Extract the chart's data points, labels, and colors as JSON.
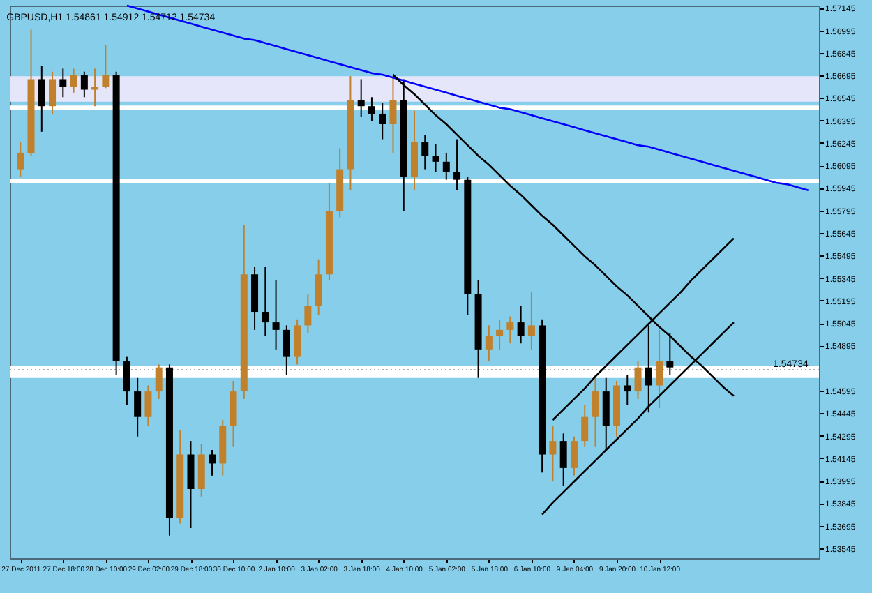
{
  "chart_data": {
    "type": "candlestick",
    "title": "GBPUSD,H1  1.54861 1.54912 1.54712 1.54734",
    "categories": [
      "27 Dec 2011",
      null,
      null,
      null,
      "27 Dec 18:00",
      null,
      null,
      null,
      "28 Dec 10:00",
      null,
      null,
      null,
      "29 Dec 02:00",
      null,
      null,
      null,
      "29 Dec 18:00",
      null,
      null,
      null,
      "30 Dec 10:00",
      null,
      null,
      null,
      "2 Jan 10:00",
      null,
      null,
      null,
      "3 Jan 02:00",
      null,
      null,
      null,
      "3 Jan 18:00",
      null,
      null,
      null,
      "4 Jan 10:00",
      null,
      null,
      null,
      "5 Jan 02:00",
      null,
      null,
      null,
      "5 Jan 18:00",
      null,
      null,
      null,
      "6 Jan 10:00",
      null,
      null,
      null,
      "9 Jan 04:00",
      null,
      null,
      null,
      "9 Jan 20:00",
      null,
      null,
      null,
      "10 Jan 12:00",
      null,
      null,
      null,
      null,
      null,
      null,
      null,
      null,
      null,
      null,
      null,
      null,
      null,
      null
    ],
    "ohlc": [
      [
        1.5607,
        1.5625,
        1.5602,
        1.5618
      ],
      [
        1.5618,
        1.57,
        1.5616,
        1.5667
      ],
      [
        1.5667,
        1.5676,
        1.5632,
        1.5649
      ],
      [
        1.5649,
        1.5672,
        1.5644,
        1.5667
      ],
      [
        1.5667,
        1.5674,
        1.5655,
        1.5662
      ],
      [
        1.5662,
        1.5674,
        1.5658,
        1.567
      ],
      [
        1.567,
        1.5672,
        1.5655,
        1.566
      ],
      [
        1.566,
        1.5674,
        1.5649,
        1.5662
      ],
      [
        1.5662,
        1.569,
        1.5661,
        1.567
      ],
      [
        1.567,
        1.5672,
        1.547,
        1.5479
      ],
      [
        1.5479,
        1.5482,
        1.545,
        1.5459
      ],
      [
        1.5459,
        1.5468,
        1.5429,
        1.5442
      ],
      [
        1.5442,
        1.5463,
        1.5436,
        1.5459
      ],
      [
        1.5459,
        1.5477,
        1.5454,
        1.5475
      ],
      [
        1.5475,
        1.5477,
        1.5363,
        1.5375
      ],
      [
        1.5375,
        1.5433,
        1.5371,
        1.5417
      ],
      [
        1.5417,
        1.5426,
        1.5368,
        1.5394
      ],
      [
        1.5394,
        1.5424,
        1.5389,
        1.5417
      ],
      [
        1.5417,
        1.542,
        1.5403,
        1.5411
      ],
      [
        1.5411,
        1.544,
        1.5403,
        1.5436
      ],
      [
        1.5436,
        1.5466,
        1.5422,
        1.5459
      ],
      [
        1.5459,
        1.557,
        1.5454,
        1.5537
      ],
      [
        1.5537,
        1.5542,
        1.55,
        1.5512
      ],
      [
        1.5512,
        1.5542,
        1.5496,
        1.5505
      ],
      [
        1.5505,
        1.5533,
        1.5487,
        1.55
      ],
      [
        1.55,
        1.5503,
        1.547,
        1.5482
      ],
      [
        1.5482,
        1.5507,
        1.5477,
        1.5503
      ],
      [
        1.5503,
        1.5524,
        1.5498,
        1.5516
      ],
      [
        1.5516,
        1.5547,
        1.551,
        1.5537
      ],
      [
        1.5537,
        1.5598,
        1.5533,
        1.5579
      ],
      [
        1.5579,
        1.5621,
        1.5575,
        1.5607
      ],
      [
        1.5607,
        1.5669,
        1.5593,
        1.5653
      ],
      [
        1.5653,
        1.5667,
        1.5642,
        1.5649
      ],
      [
        1.5649,
        1.5655,
        1.5639,
        1.5644
      ],
      [
        1.5644,
        1.5651,
        1.5627,
        1.5637
      ],
      [
        1.5637,
        1.5669,
        1.5618,
        1.5653
      ],
      [
        1.5653,
        1.5667,
        1.5579,
        1.5602
      ],
      [
        1.5602,
        1.5646,
        1.5593,
        1.5625
      ],
      [
        1.5625,
        1.563,
        1.5607,
        1.5616
      ],
      [
        1.5616,
        1.5624,
        1.5605,
        1.5612
      ],
      [
        1.5612,
        1.5618,
        1.56,
        1.5605
      ],
      [
        1.5605,
        1.5627,
        1.5593,
        1.56
      ],
      [
        1.56,
        1.5602,
        1.551,
        1.5524
      ],
      [
        1.5524,
        1.5533,
        1.5468,
        1.5487
      ],
      [
        1.5487,
        1.5503,
        1.5479,
        1.5496
      ],
      [
        1.5496,
        1.5507,
        1.5487,
        1.55
      ],
      [
        1.55,
        1.5509,
        1.5491,
        1.5505
      ],
      [
        1.5505,
        1.5516,
        1.5491,
        1.5496
      ],
      [
        1.5496,
        1.5525,
        1.5487,
        1.5503
      ],
      [
        1.5503,
        1.5507,
        1.5405,
        1.5417
      ],
      [
        1.5417,
        1.5436,
        1.5399,
        1.5426
      ],
      [
        1.5426,
        1.5431,
        1.5396,
        1.5408
      ],
      [
        1.5408,
        1.5429,
        1.5403,
        1.5426
      ],
      [
        1.5426,
        1.545,
        1.5422,
        1.5442
      ],
      [
        1.5442,
        1.547,
        1.5422,
        1.5459
      ],
      [
        1.5459,
        1.5468,
        1.542,
        1.5436
      ],
      [
        1.5436,
        1.5466,
        1.5429,
        1.5463
      ],
      [
        1.5463,
        1.547,
        1.545,
        1.5459
      ],
      [
        1.5459,
        1.5479,
        1.5454,
        1.5475
      ],
      [
        1.5475,
        1.5503,
        1.5445,
        1.5463
      ],
      [
        1.5463,
        1.55,
        1.5448,
        1.5479
      ],
      [
        1.5479,
        1.5498,
        1.547,
        1.5475
      ],
      null,
      null,
      null,
      null,
      null,
      null,
      null,
      null,
      null,
      null,
      null,
      null,
      null
    ],
    "colors": [
      "#c0802c",
      "#c0802c",
      "#000000",
      "#c0802c",
      "#000000",
      "#c0802c",
      "#000000",
      "#c0802c",
      "#c0802c",
      "#000000",
      "#000000",
      "#000000",
      "#c0802c",
      "#c0802c",
      "#000000",
      "#c0802c",
      "#000000",
      "#c0802c",
      "#000000",
      "#c0802c",
      "#c0802c",
      "#c0802c",
      "#000000",
      "#000000",
      "#000000",
      "#000000",
      "#c0802c",
      "#c0802c",
      "#c0802c",
      "#c0802c",
      "#c0802c",
      "#c0802c",
      "#000000",
      "#000000",
      "#000000",
      "#c0802c",
      "#000000",
      "#c0802c",
      "#000000",
      "#000000",
      "#000000",
      "#000000",
      "#000000",
      "#000000",
      "#c0802c",
      "#c0802c",
      "#c0802c",
      "#000000",
      "#c0802c",
      "#000000",
      "#c0802c",
      "#000000",
      "#c0802c",
      "#c0802c",
      "#c0802c",
      "#000000",
      "#c0802c",
      "#000000",
      "#c0802c",
      "#000000",
      "#c0802c",
      "#000000",
      null,
      null,
      null,
      null,
      null,
      null,
      null,
      null,
      null,
      null,
      null,
      null,
      null
    ],
    "series": [
      {
        "type": "line",
        "color": "#0000ff",
        "values": [
          null,
          null,
          null,
          null,
          null,
          null,
          null,
          null,
          null,
          null,
          1.5716,
          1.5714,
          1.5712,
          1.571,
          1.5708,
          1.5706,
          1.5704,
          1.5702,
          1.57,
          1.5698,
          1.5696,
          1.5694,
          1.5693,
          1.5691,
          1.5689,
          1.5687,
          1.5685,
          1.5683,
          1.5681,
          1.5679,
          1.5677,
          1.5675,
          1.5673,
          1.5671,
          1.567,
          1.5668,
          1.5666,
          1.5664,
          1.5662,
          1.566,
          1.5658,
          1.5656,
          1.5654,
          1.5652,
          1.565,
          1.5648,
          1.5647,
          1.5645,
          1.5643,
          1.5641,
          1.5639,
          1.5637,
          1.5635,
          1.5633,
          1.5631,
          1.5629,
          1.5627,
          1.5625,
          1.5623,
          1.5622,
          1.562,
          1.5618,
          1.5616,
          1.5614,
          1.5612,
          1.561,
          1.5608,
          1.5606,
          1.5604,
          1.5602,
          1.56,
          1.5598,
          1.5597,
          1.5595,
          1.5593
        ]
      },
      {
        "type": "line",
        "color": "#000000",
        "values": [
          null,
          null,
          null,
          null,
          null,
          null,
          null,
          null,
          null,
          null,
          null,
          null,
          null,
          null,
          null,
          null,
          null,
          null,
          null,
          null,
          null,
          null,
          null,
          null,
          null,
          null,
          null,
          null,
          null,
          null,
          null,
          null,
          null,
          null,
          null,
          1.567,
          1.5663,
          1.5657,
          1.565,
          1.5643,
          1.5637,
          1.563,
          1.5623,
          1.5616,
          1.561,
          1.5603,
          1.5596,
          1.559,
          1.5583,
          1.5576,
          1.557,
          1.5563,
          1.5556,
          1.5549,
          1.5543,
          1.5536,
          1.5529,
          1.5523,
          1.5516,
          1.5509,
          1.5502,
          1.5496,
          1.5489,
          1.5482,
          1.5476,
          1.5469,
          1.5462,
          1.5456,
          null,
          null,
          null,
          null,
          null,
          null,
          null
        ]
      },
      {
        "type": "line",
        "color": "#000000",
        "values": [
          null,
          null,
          null,
          null,
          null,
          null,
          null,
          null,
          null,
          null,
          null,
          null,
          null,
          null,
          null,
          null,
          null,
          null,
          null,
          null,
          null,
          null,
          null,
          null,
          null,
          null,
          null,
          null,
          null,
          null,
          null,
          null,
          null,
          null,
          null,
          null,
          null,
          null,
          null,
          null,
          null,
          null,
          null,
          null,
          null,
          null,
          null,
          null,
          null,
          null,
          1.544,
          1.5447,
          1.5454,
          1.5461,
          1.5469,
          1.5476,
          1.5483,
          1.549,
          1.5497,
          1.5504,
          1.5511,
          1.5518,
          1.5525,
          1.5533,
          1.554,
          1.5547,
          1.5554,
          1.5561,
          null,
          null,
          null,
          null,
          null,
          null,
          null
        ]
      },
      {
        "type": "line",
        "color": "#000000",
        "values": [
          null,
          null,
          null,
          null,
          null,
          null,
          null,
          null,
          null,
          null,
          null,
          null,
          null,
          null,
          null,
          null,
          null,
          null,
          null,
          null,
          null,
          null,
          null,
          null,
          null,
          null,
          null,
          null,
          null,
          null,
          null,
          null,
          null,
          null,
          null,
          null,
          null,
          null,
          null,
          null,
          null,
          null,
          null,
          null,
          null,
          null,
          null,
          null,
          null,
          1.5377,
          1.5385,
          1.5392,
          1.5399,
          1.5406,
          1.5413,
          1.542,
          1.5427,
          1.5434,
          1.5441,
          1.5449,
          1.5456,
          1.5463,
          1.547,
          1.5477,
          1.5484,
          1.5491,
          1.5498,
          1.5505,
          null,
          null,
          null,
          null,
          null,
          null,
          null
        ]
      }
    ],
    "bands": [
      {
        "axis": "y",
        "from": 1.5652,
        "to": 1.5669,
        "color": "#e6e6fa"
      },
      {
        "axis": "y",
        "from": 1.5468,
        "to": 1.5476,
        "color": "#ffffff"
      }
    ],
    "ref_lines": [
      {
        "axis": "y",
        "value": 1.5648,
        "color": "#ffffff"
      },
      {
        "axis": "y",
        "value": 1.5599,
        "color": "#ffffff"
      },
      {
        "axis": "y",
        "value": 1.54734,
        "label": "1.54734",
        "color": "#b0b0b0",
        "line_style": "dotted"
      }
    ],
    "ylim": [
      1.5348,
      1.5716
    ],
    "yticks": [
      1.57145,
      1.56995,
      1.56845,
      1.56695,
      1.56545,
      1.56395,
      1.56245,
      1.56095,
      1.55945,
      1.55795,
      1.55645,
      1.55495,
      1.55345,
      1.55195,
      1.55045,
      1.54895,
      1.54595,
      1.54445,
      1.54295,
      1.54145,
      1.53995,
      1.53845,
      1.53695,
      1.53545
    ]
  }
}
